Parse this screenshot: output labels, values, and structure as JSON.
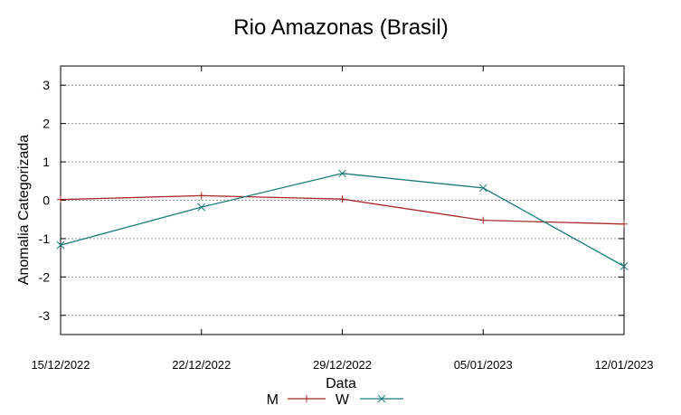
{
  "chart_data": {
    "type": "line",
    "title": "Rio Amazonas (Brasil)",
    "xlabel": "Data",
    "ylabel": "Anomalia Categorizada",
    "categories": [
      "15/12/2022",
      "22/12/2022",
      "29/12/2022",
      "05/01/2023",
      "12/01/2023"
    ],
    "yticks": [
      "3",
      "2",
      "1",
      "0",
      "-1",
      "-2",
      "-3"
    ],
    "ylim": [
      -3.5,
      3.5
    ],
    "grid": true,
    "legend_position": "bottom-center",
    "series": [
      {
        "name": "M",
        "color": "#a52a2a",
        "marker": "plus",
        "values": [
          0.02,
          0.12,
          0.03,
          -0.52,
          -0.62
        ]
      },
      {
        "name": "W",
        "color": "#1a7a7a",
        "marker": "cross",
        "values": [
          -1.17,
          -0.18,
          0.7,
          0.32,
          -1.72
        ]
      }
    ]
  }
}
